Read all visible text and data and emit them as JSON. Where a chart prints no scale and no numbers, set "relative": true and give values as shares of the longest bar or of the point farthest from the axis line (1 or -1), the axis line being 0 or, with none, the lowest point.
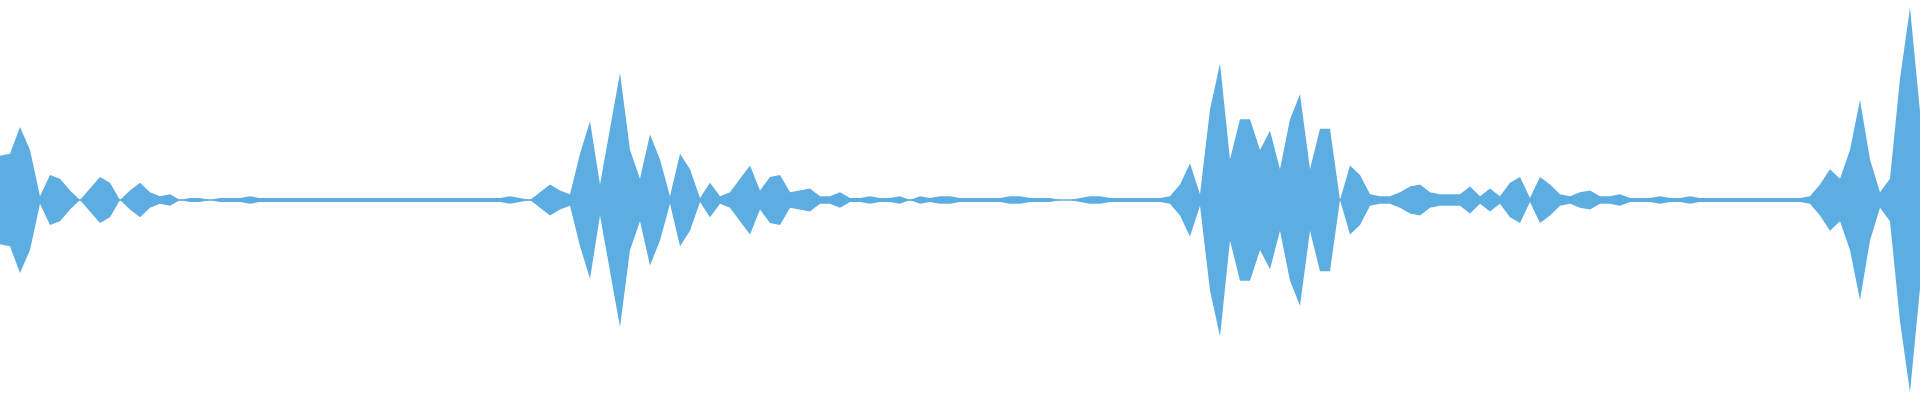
{
  "chart_data": {
    "type": "area",
    "relative": true,
    "ref_lines": [
      {
        "axis": "y",
        "value": 0,
        "color": "#5dade2"
      }
    ],
    "categories": [
      null,
      null,
      null,
      null,
      null,
      null,
      null,
      null,
      null,
      null,
      null,
      null,
      null,
      null,
      null,
      null,
      null,
      null,
      null,
      null,
      null,
      null,
      null,
      null,
      null,
      null,
      null,
      null,
      null,
      null,
      null,
      null,
      null,
      null,
      null,
      null,
      null,
      null,
      null,
      null,
      null,
      null,
      null,
      null,
      null,
      null,
      null,
      null,
      null,
      null,
      null,
      null,
      null,
      null,
      null,
      null,
      null,
      null,
      null,
      null,
      null,
      null,
      null,
      null,
      null,
      null,
      null,
      null,
      null,
      null,
      null,
      null,
      null,
      null,
      null,
      null,
      null,
      null,
      null,
      null,
      null,
      null,
      null,
      null,
      null,
      null,
      null,
      null,
      null,
      null,
      null,
      null,
      null,
      null,
      null,
      null,
      null,
      null,
      null,
      null,
      null,
      null,
      null,
      null,
      null,
      null,
      null,
      null,
      null,
      null,
      null,
      null,
      null,
      null,
      null,
      null,
      null,
      null,
      null,
      null,
      null,
      null,
      null,
      null,
      null,
      null,
      null,
      null,
      null,
      null,
      null,
      null,
      null,
      null,
      null,
      null,
      null,
      null,
      null,
      null,
      null,
      null,
      null,
      null,
      null,
      null,
      null,
      null,
      null,
      null,
      null,
      null,
      null,
      null,
      null,
      null,
      null,
      null,
      null,
      null,
      null,
      null,
      null,
      null,
      null,
      null,
      null,
      null,
      null,
      null,
      null,
      null,
      null,
      null,
      null,
      null,
      null,
      null,
      null,
      null,
      null,
      null,
      null,
      null,
      null,
      null,
      null,
      null,
      null,
      null,
      null,
      null,
      null
    ],
    "series": [
      {
        "color": "#5dade2",
        "values": [
          0.23,
          0.24,
          0.38,
          0.26,
          0.02,
          0.13,
          0.11,
          0.05,
          0,
          0.06,
          0.12,
          0.09,
          0,
          0.05,
          0.09,
          0.04,
          0.02,
          0.03,
          0,
          0.01,
          0.01,
          0,
          0.01,
          0.01,
          0.01,
          0.02,
          0.01,
          0.01,
          0.01,
          0.01,
          0.01,
          0.01,
          0.01,
          0.01,
          0.01,
          0.01,
          0.01,
          0.01,
          0.01,
          0.01,
          0.01,
          0.01,
          0.01,
          0.01,
          0.01,
          0.01,
          0.01,
          0.01,
          0.01,
          0.01,
          0.01,
          0.02,
          0.01,
          0,
          0.04,
          0.08,
          0.05,
          0.03,
          0.24,
          0.41,
          0.08,
          0.37,
          0.66,
          0.26,
          0.11,
          0.34,
          0.21,
          0.02,
          0.24,
          0.16,
          0.01,
          0.09,
          0.02,
          0.04,
          0.11,
          0.18,
          0.05,
          0.12,
          0.13,
          0.04,
          0.05,
          0.06,
          0.02,
          0.02,
          0.04,
          0.01,
          0.01,
          0.02,
          0.01,
          0.01,
          0.02,
          0,
          0.02,
          0.01,
          0.02,
          0.02,
          0.01,
          0.01,
          0.01,
          0.01,
          0.01,
          0.02,
          0.02,
          0.01,
          0.01,
          0.01,
          0,
          0,
          0.01,
          0.02,
          0.02,
          0.01,
          0.01,
          0.01,
          0.01,
          0.01,
          0.01,
          0.02,
          0.08,
          0.19,
          0.03,
          0.47,
          0.71,
          0.21,
          0.42,
          0.42,
          0.26,
          0.36,
          0.16,
          0.42,
          0.55,
          0.16,
          0.37,
          0.37,
          0,
          0.18,
          0.13,
          0.03,
          0.02,
          0.02,
          0.04,
          0.07,
          0.08,
          0.04,
          0.03,
          0.03,
          0.03,
          0.07,
          0.02,
          0.06,
          0.02,
          0.09,
          0.12,
          0.01,
          0.12,
          0.08,
          0.03,
          0.02,
          0.04,
          0.05,
          0.02,
          0.02,
          0.03,
          0.01,
          0.01,
          0.01,
          0.02,
          0.01,
          0.01,
          0.02,
          0.01,
          0.01,
          0.01,
          0.01,
          0.01,
          0.01,
          0.01,
          0.01,
          0.01,
          0.01,
          0.01,
          0.02,
          0.08,
          0.16,
          0.11,
          0.26,
          0.52,
          0.21,
          0.04,
          0.11,
          0.63,
          1,
          0.46
        ]
      },
      {
        "color": "#5caee2",
        "values": [
          -0.23,
          -0.24,
          -0.38,
          -0.26,
          -0.02,
          -0.13,
          -0.11,
          -0.05,
          0,
          -0.06,
          -0.12,
          -0.09,
          0,
          -0.05,
          -0.09,
          -0.04,
          -0.02,
          -0.03,
          0,
          -0.01,
          -0.01,
          0,
          -0.01,
          -0.01,
          -0.01,
          -0.02,
          -0.01,
          -0.01,
          -0.01,
          -0.01,
          -0.01,
          -0.01,
          -0.01,
          -0.01,
          -0.01,
          -0.01,
          -0.01,
          -0.01,
          -0.01,
          -0.01,
          -0.01,
          -0.01,
          -0.01,
          -0.01,
          -0.01,
          -0.01,
          -0.01,
          -0.01,
          -0.01,
          -0.01,
          -0.01,
          -0.02,
          -0.01,
          0,
          -0.04,
          -0.08,
          -0.05,
          -0.03,
          -0.24,
          -0.41,
          -0.08,
          -0.37,
          -0.66,
          -0.26,
          -0.11,
          -0.34,
          -0.21,
          -0.02,
          -0.24,
          -0.16,
          -0.01,
          -0.09,
          -0.02,
          -0.04,
          -0.11,
          -0.18,
          -0.05,
          -0.12,
          -0.13,
          -0.04,
          -0.05,
          -0.06,
          -0.02,
          -0.02,
          -0.04,
          -0.01,
          -0.01,
          -0.02,
          -0.01,
          -0.01,
          -0.02,
          0,
          -0.02,
          -0.01,
          -0.02,
          -0.02,
          -0.01,
          -0.01,
          -0.01,
          -0.01,
          -0.01,
          -0.02,
          -0.02,
          -0.01,
          -0.01,
          -0.01,
          0,
          0,
          -0.01,
          -0.02,
          -0.02,
          -0.01,
          -0.01,
          -0.01,
          -0.01,
          -0.01,
          -0.01,
          -0.02,
          -0.08,
          -0.19,
          -0.03,
          -0.47,
          -0.71,
          -0.21,
          -0.42,
          -0.42,
          -0.26,
          -0.36,
          -0.16,
          -0.42,
          -0.55,
          -0.16,
          -0.37,
          -0.37,
          0,
          -0.18,
          -0.13,
          -0.03,
          -0.02,
          -0.02,
          -0.04,
          -0.07,
          -0.08,
          -0.04,
          -0.03,
          -0.03,
          -0.03,
          -0.07,
          -0.02,
          -0.06,
          -0.02,
          -0.09,
          -0.12,
          -0.01,
          -0.12,
          -0.08,
          -0.03,
          -0.02,
          -0.04,
          -0.05,
          -0.02,
          -0.02,
          -0.03,
          -0.01,
          -0.01,
          -0.01,
          -0.02,
          -0.01,
          -0.01,
          -0.02,
          -0.01,
          -0.01,
          -0.01,
          -0.01,
          -0.01,
          -0.01,
          -0.01,
          -0.01,
          -0.01,
          -0.01,
          -0.01,
          -0.02,
          -0.08,
          -0.16,
          -0.11,
          -0.26,
          -0.52,
          -0.21,
          -0.04,
          -0.11,
          -0.63,
          -1,
          -0.46
        ]
      }
    ]
  }
}
